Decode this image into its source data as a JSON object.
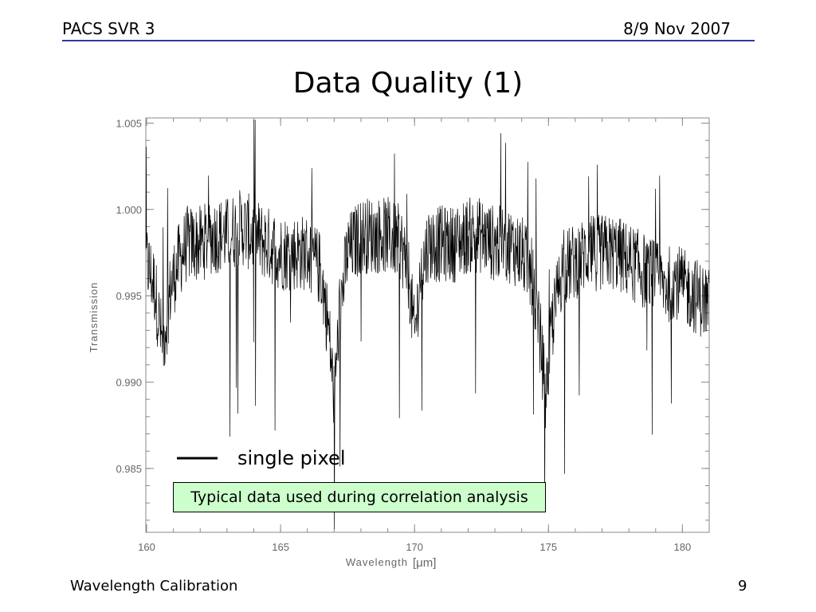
{
  "header": {
    "left": "PACS SVR 3",
    "right": "8/9 Nov 2007",
    "rule_color": "#2a3ba0"
  },
  "title": "Data Quality (1)",
  "chart_data": {
    "type": "line",
    "xlabel": "Wavelength",
    "xlabel_unit": "[μm]",
    "ylabel": "Transmission",
    "xlim": [
      159.97,
      181.0
    ],
    "ylim": [
      0.9813,
      1.0053
    ],
    "x_ticks": [
      160,
      165,
      170,
      175,
      180
    ],
    "x_tick_labels": [
      "160",
      "165",
      "170",
      "175",
      "180"
    ],
    "y_ticks": [
      0.985,
      0.99,
      0.995,
      1.0,
      1.005
    ],
    "y_tick_labels": [
      "0.985",
      "0.990",
      "0.995",
      "1.000",
      "1.005"
    ],
    "grid": false,
    "series": [
      {
        "name": "single pixel",
        "color": "#000000",
        "x": [
          160.0,
          160.3,
          160.6,
          160.9,
          161.2,
          161.5,
          162.0,
          162.5,
          163.0,
          163.5,
          164.0,
          164.5,
          165.0,
          165.5,
          166.0,
          166.5,
          166.8,
          167.0,
          167.2,
          167.5,
          168.0,
          168.5,
          169.0,
          169.5,
          169.8,
          170.0,
          170.2,
          170.5,
          171.0,
          171.5,
          172.0,
          172.5,
          173.0,
          173.5,
          174.0,
          174.4,
          174.7,
          174.9,
          175.1,
          175.5,
          176.0,
          176.5,
          177.0,
          177.5,
          178.0,
          178.5,
          179.0,
          179.4,
          179.7,
          180.0,
          180.5,
          181.0
        ],
        "y": [
          0.997,
          0.9955,
          0.992,
          0.9955,
          0.997,
          0.998,
          0.998,
          0.9985,
          0.9985,
          0.999,
          0.9985,
          0.998,
          0.9975,
          0.9975,
          0.9975,
          0.9965,
          0.993,
          0.989,
          0.994,
          0.9975,
          0.9985,
          0.9985,
          0.9985,
          0.998,
          0.996,
          0.9925,
          0.996,
          0.998,
          0.998,
          0.998,
          0.9985,
          0.9985,
          0.998,
          0.998,
          0.9975,
          0.996,
          0.9925,
          0.989,
          0.993,
          0.9965,
          0.997,
          0.9975,
          0.9975,
          0.9975,
          0.997,
          0.9965,
          0.996,
          0.9955,
          0.996,
          0.9955,
          0.995,
          0.9945
        ]
      }
    ],
    "legend": {
      "label": "single pixel",
      "placement": "lower-left"
    }
  },
  "callout": {
    "text": "Typical data used during correlation analysis",
    "background": "#ccffcc"
  },
  "footer": {
    "left": "Wavelength Calibration",
    "right": "9"
  }
}
